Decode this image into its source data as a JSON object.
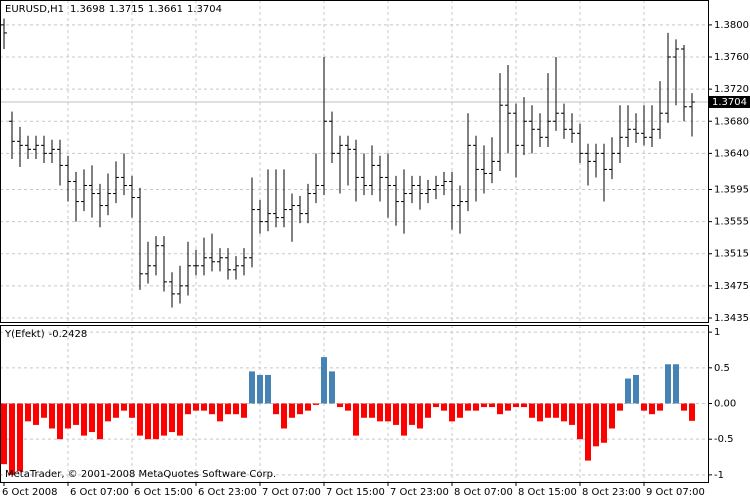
{
  "chart_data": [
    {
      "type": "ohlc",
      "title": "EURUSD,H1",
      "color": "#000000",
      "grid": true,
      "current_price_color": "#c0c0c0",
      "categories": [
        "6 Oct 2008",
        null,
        null,
        null,
        null,
        null,
        null,
        null,
        "6 Oct 07:00",
        null,
        null,
        null,
        null,
        null,
        null,
        null,
        "6 Oct 15:00",
        null,
        null,
        null,
        null,
        null,
        null,
        null,
        "6 Oct 23:00",
        null,
        null,
        null,
        null,
        null,
        null,
        null,
        "7 Oct 07:00",
        null,
        null,
        null,
        null,
        null,
        null,
        null,
        "7 Oct 15:00",
        null,
        null,
        null,
        null,
        null,
        null,
        null,
        "7 Oct 23:00",
        null,
        null,
        null,
        null,
        null,
        null,
        null,
        "8 Oct 07:00",
        null,
        null,
        null,
        null,
        null,
        null,
        null,
        "8 Oct 15:00",
        null,
        null,
        null,
        null,
        null,
        null,
        null,
        "8 Oct 23:00",
        null,
        null,
        null,
        null,
        null,
        null,
        null,
        "9 Oct 07:00",
        null,
        null,
        null,
        null,
        null,
        null
      ],
      "open": [
        1.38,
        1.368,
        1.3655,
        1.365,
        1.3645,
        1.365,
        1.364,
        1.3645,
        1.3625,
        1.3605,
        1.358,
        1.36,
        1.359,
        1.3575,
        1.359,
        1.361,
        1.36,
        1.3585,
        1.349,
        1.35,
        1.3525,
        1.348,
        1.3465,
        1.3475,
        1.35,
        1.35,
        1.351,
        1.3505,
        1.351,
        1.3495,
        1.35,
        1.351,
        1.357,
        1.3555,
        1.3565,
        1.356,
        1.357,
        1.3575,
        1.3565,
        1.359,
        1.36,
        1.368,
        1.364,
        1.365,
        1.3645,
        1.361,
        1.36,
        1.3625,
        1.361,
        1.36,
        1.358,
        1.359,
        1.36,
        1.359,
        1.3595,
        1.36,
        1.3605,
        1.3575,
        1.358,
        1.365,
        1.362,
        1.3615,
        1.363,
        1.37,
        1.369,
        1.365,
        1.368,
        1.367,
        1.366,
        1.368,
        1.369,
        1.367,
        1.3665,
        1.364,
        1.363,
        1.364,
        1.362,
        1.364,
        1.366,
        1.367,
        1.3665,
        1.366,
        1.367,
        1.369,
        1.376,
        1.377,
        1.3698
      ],
      "high": [
        1.3808,
        1.3692,
        1.3673,
        1.3662,
        1.3662,
        1.3662,
        1.3657,
        1.3657,
        1.3637,
        1.3617,
        1.362,
        1.3625,
        1.3602,
        1.3615,
        1.363,
        1.364,
        1.3612,
        1.3597,
        1.353,
        1.3537,
        1.3537,
        1.3492,
        1.35,
        1.353,
        1.352,
        1.3535,
        1.354,
        1.3522,
        1.3522,
        1.3512,
        1.3522,
        1.361,
        1.3582,
        1.362,
        1.362,
        1.362,
        1.359,
        1.3587,
        1.3602,
        1.364,
        1.376,
        1.3692,
        1.3662,
        1.3662,
        1.3657,
        1.364,
        1.365,
        1.3637,
        1.364,
        1.3612,
        1.362,
        1.3612,
        1.3612,
        1.3607,
        1.3612,
        1.3617,
        1.3617,
        1.36,
        1.369,
        1.3662,
        1.365,
        1.366,
        1.374,
        1.375,
        1.3702,
        1.371,
        1.37,
        1.369,
        1.374,
        1.376,
        1.3702,
        1.369,
        1.3677,
        1.3652,
        1.3652,
        1.3652,
        1.366,
        1.37,
        1.37,
        1.369,
        1.37,
        1.37,
        1.373,
        1.379,
        1.3782,
        1.3775,
        1.3715
      ],
      "low": [
        1.377,
        1.3633,
        1.3623,
        1.3633,
        1.3633,
        1.3628,
        1.3628,
        1.36,
        1.358,
        1.3555,
        1.3568,
        1.356,
        1.3548,
        1.3563,
        1.3578,
        1.3588,
        1.356,
        1.347,
        1.3478,
        1.3488,
        1.3468,
        1.3448,
        1.3453,
        1.3463,
        1.3488,
        1.3488,
        1.3493,
        1.3493,
        1.3483,
        1.3483,
        1.3488,
        1.3498,
        1.354,
        1.3543,
        1.3548,
        1.3548,
        1.353,
        1.3553,
        1.3553,
        1.3578,
        1.3588,
        1.3628,
        1.359,
        1.36,
        1.358,
        1.3588,
        1.3588,
        1.358,
        1.356,
        1.355,
        1.354,
        1.3578,
        1.357,
        1.3578,
        1.3583,
        1.3588,
        1.3545,
        1.354,
        1.3568,
        1.358,
        1.359,
        1.3603,
        1.3618,
        1.364,
        1.361,
        1.3638,
        1.364,
        1.3648,
        1.3648,
        1.3668,
        1.3658,
        1.3653,
        1.3628,
        1.36,
        1.361,
        1.358,
        1.3608,
        1.3628,
        1.3648,
        1.3653,
        1.365,
        1.3648,
        1.3658,
        1.3678,
        1.37,
        1.368,
        1.3661
      ],
      "close": [
        1.379,
        1.3655,
        1.365,
        1.3645,
        1.365,
        1.364,
        1.3645,
        1.3625,
        1.3605,
        1.358,
        1.36,
        1.359,
        1.3575,
        1.359,
        1.361,
        1.36,
        1.3585,
        1.349,
        1.35,
        1.3525,
        1.348,
        1.3465,
        1.3475,
        1.35,
        1.35,
        1.351,
        1.3505,
        1.351,
        1.3495,
        1.35,
        1.351,
        1.357,
        1.3555,
        1.3565,
        1.356,
        1.357,
        1.3575,
        1.3565,
        1.359,
        1.36,
        1.368,
        1.364,
        1.365,
        1.3645,
        1.361,
        1.36,
        1.3625,
        1.361,
        1.36,
        1.358,
        1.359,
        1.36,
        1.359,
        1.3595,
        1.36,
        1.3605,
        1.3575,
        1.358,
        1.365,
        1.362,
        1.3615,
        1.363,
        1.37,
        1.369,
        1.365,
        1.368,
        1.367,
        1.366,
        1.368,
        1.369,
        1.367,
        1.3665,
        1.364,
        1.363,
        1.364,
        1.362,
        1.364,
        1.366,
        1.367,
        1.3665,
        1.366,
        1.367,
        1.369,
        1.376,
        1.377,
        1.3698,
        1.3704
      ],
      "ylim": [
        1.343,
        1.3831
      ],
      "yticks": [
        1.3435,
        1.3475,
        1.3515,
        1.3555,
        1.3595,
        {
          "value": 1.364,
          "label": "1.3640"
        },
        {
          "value": 1.368,
          "label": "1.3680"
        },
        {
          "value": 1.372,
          "label": "1.3720"
        },
        {
          "value": 1.376,
          "label": "1.3760"
        },
        {
          "value": 1.38,
          "label": "1.3800"
        }
      ]
    },
    {
      "type": "bar",
      "name": "Y(Efekt)",
      "up_color": "#4682b4",
      "down_color": "#ff0000",
      "grid": true,
      "footer": "MetaTrader, © 2001-2008 MetaQuotes Software Corp.",
      "values": [
        -0.85,
        -1.0,
        -0.95,
        -0.25,
        -0.3,
        -0.2,
        -0.35,
        -0.5,
        -0.35,
        -0.3,
        -0.45,
        -0.4,
        -0.5,
        -0.25,
        -0.2,
        -0.1,
        -0.2,
        -0.45,
        -0.5,
        -0.5,
        -0.45,
        -0.4,
        -0.45,
        -0.15,
        -0.1,
        -0.1,
        -0.15,
        -0.25,
        -0.15,
        -0.15,
        -0.2,
        0.45,
        0.4,
        0.4,
        -0.15,
        -0.35,
        -0.2,
        -0.15,
        -0.1,
        -0.02,
        0.65,
        0.45,
        -0.05,
        -0.1,
        -0.45,
        -0.2,
        -0.2,
        -0.25,
        -0.25,
        -0.3,
        -0.45,
        -0.3,
        -0.35,
        -0.2,
        -0.05,
        -0.1,
        -0.25,
        -0.2,
        -0.1,
        -0.1,
        -0.05,
        -0.05,
        -0.15,
        -0.1,
        -0.05,
        -0.05,
        -0.2,
        -0.25,
        -0.2,
        -0.2,
        -0.25,
        -0.3,
        -0.5,
        -0.8,
        -0.6,
        -0.55,
        -0.35,
        -0.1,
        0.35,
        0.4,
        -0.1,
        -0.15,
        -0.1,
        0.55,
        0.55,
        -0.1,
        -0.2428
      ],
      "ylim": [
        -1.1,
        1.1
      ],
      "yticks": [
        -1,
        -0.5,
        {
          "value": 0,
          "label": "0.00"
        },
        0.5,
        1
      ]
    }
  ]
}
